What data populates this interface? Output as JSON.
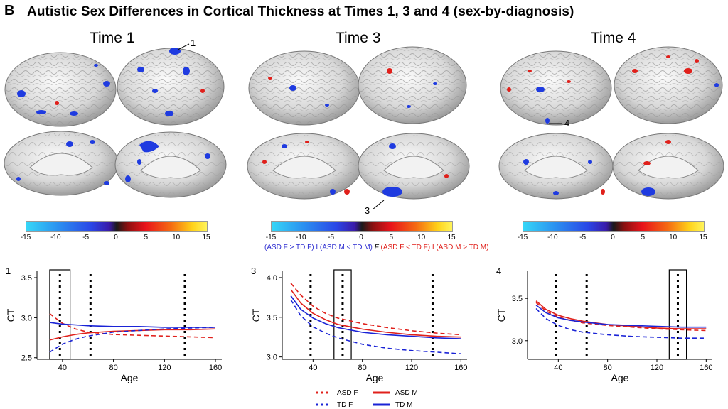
{
  "panel_letter": "B",
  "title": "Autistic Sex Differences in Cortical Thickness at Times 1, 3 and 4 (sex-by-diagnosis)",
  "times": [
    {
      "label": "Time 1",
      "callout": "1"
    },
    {
      "label": "Time 3",
      "callout": "3"
    },
    {
      "label": "Time 4",
      "callout": "4"
    }
  ],
  "colorbar": {
    "ticks": [
      "-15",
      "-10",
      "-5",
      "0",
      "5",
      "10",
      "15"
    ],
    "note": {
      "blue_part": "(ASD F > TD F) I (ASD M < TD M)",
      "f_part": "F",
      "red_part": "(ASD F < TD F) I (ASD M > TD M)"
    }
  },
  "legend": {
    "asd_f": "ASD F",
    "asd_m": "ASD M",
    "td_f": "TD F",
    "td_m": "TD M",
    "colors": {
      "asd": "#e0201b",
      "td": "#1a23d6"
    }
  },
  "chart_data": [
    {
      "type": "line",
      "panel_label": "1",
      "xlabel": "Age",
      "ylabel": "CT",
      "xticks": [
        40,
        80,
        120,
        160
      ],
      "yticks": [
        "2.5",
        "3.0",
        "3.5"
      ],
      "xlim": [
        20,
        165
      ],
      "ylim": [
        2.48,
        3.58
      ],
      "vlines": [
        38,
        62,
        136
      ],
      "highlight_box": [
        30,
        46
      ],
      "series": [
        {
          "name": "ASD F",
          "x": [
            30,
            40,
            50,
            60,
            80,
            100,
            120,
            140,
            160
          ],
          "y": [
            3.05,
            2.93,
            2.86,
            2.82,
            2.79,
            2.78,
            2.77,
            2.76,
            2.75
          ]
        },
        {
          "name": "ASD M",
          "x": [
            30,
            40,
            50,
            60,
            80,
            100,
            120,
            140,
            160
          ],
          "y": [
            2.72,
            2.76,
            2.79,
            2.81,
            2.83,
            2.84,
            2.85,
            2.85,
            2.86
          ]
        },
        {
          "name": "TD F",
          "x": [
            30,
            40,
            50,
            60,
            80,
            100,
            120,
            140,
            160
          ],
          "y": [
            2.57,
            2.67,
            2.73,
            2.77,
            2.82,
            2.84,
            2.86,
            2.87,
            2.88
          ]
        },
        {
          "name": "TD M",
          "x": [
            30,
            40,
            50,
            60,
            80,
            100,
            120,
            140,
            160
          ],
          "y": [
            2.94,
            2.92,
            2.91,
            2.9,
            2.89,
            2.89,
            2.88,
            2.88,
            2.88
          ]
        }
      ]
    },
    {
      "type": "line",
      "panel_label": "3",
      "xlabel": "Age",
      "ylabel": "CT",
      "xticks": [
        40,
        80,
        120,
        160
      ],
      "yticks": [
        "3.0",
        "3.5",
        "4.0"
      ],
      "xlim": [
        15,
        165
      ],
      "ylim": [
        2.97,
        4.08
      ],
      "vlines": [
        38,
        64,
        137
      ],
      "highlight_box": [
        57,
        71
      ],
      "series": [
        {
          "name": "ASD F",
          "x": [
            22,
            30,
            40,
            50,
            60,
            80,
            100,
            120,
            140,
            160
          ],
          "y": [
            3.93,
            3.78,
            3.64,
            3.55,
            3.49,
            3.42,
            3.37,
            3.33,
            3.3,
            3.28
          ]
        },
        {
          "name": "ASD M",
          "x": [
            22,
            30,
            40,
            50,
            60,
            80,
            100,
            120,
            140,
            160
          ],
          "y": [
            3.85,
            3.68,
            3.55,
            3.47,
            3.41,
            3.35,
            3.31,
            3.28,
            3.26,
            3.25
          ]
        },
        {
          "name": "TD F",
          "x": [
            22,
            30,
            40,
            50,
            60,
            80,
            100,
            120,
            140,
            160
          ],
          "y": [
            3.72,
            3.52,
            3.38,
            3.3,
            3.24,
            3.16,
            3.11,
            3.08,
            3.06,
            3.04
          ]
        },
        {
          "name": "TD M",
          "x": [
            22,
            30,
            40,
            50,
            60,
            80,
            100,
            120,
            140,
            160
          ],
          "y": [
            3.77,
            3.6,
            3.49,
            3.42,
            3.37,
            3.31,
            3.28,
            3.26,
            3.24,
            3.23
          ]
        }
      ]
    },
    {
      "type": "line",
      "panel_label": "4",
      "xlabel": "Age",
      "ylabel": "CT",
      "xticks": [
        40,
        80,
        120,
        160
      ],
      "yticks": [
        "3.0",
        "3.5"
      ],
      "xlim": [
        15,
        165
      ],
      "ylim": [
        2.78,
        3.82
      ],
      "vlines": [
        38,
        63,
        137
      ],
      "highlight_box": [
        130,
        144
      ],
      "series": [
        {
          "name": "ASD F",
          "x": [
            22,
            30,
            40,
            50,
            60,
            80,
            100,
            120,
            140,
            160
          ],
          "y": [
            3.45,
            3.35,
            3.28,
            3.24,
            3.21,
            3.18,
            3.16,
            3.14,
            3.13,
            3.12
          ]
        },
        {
          "name": "ASD M",
          "x": [
            22,
            30,
            40,
            50,
            60,
            80,
            100,
            120,
            140,
            160
          ],
          "y": [
            3.47,
            3.37,
            3.3,
            3.26,
            3.23,
            3.19,
            3.17,
            3.15,
            3.14,
            3.14
          ]
        },
        {
          "name": "TD F",
          "x": [
            22,
            30,
            40,
            50,
            60,
            80,
            100,
            120,
            140,
            160
          ],
          "y": [
            3.38,
            3.26,
            3.18,
            3.13,
            3.1,
            3.07,
            3.05,
            3.04,
            3.03,
            3.03
          ]
        },
        {
          "name": "TD M",
          "x": [
            22,
            30,
            40,
            50,
            60,
            80,
            100,
            120,
            140,
            160
          ],
          "y": [
            3.42,
            3.33,
            3.27,
            3.24,
            3.22,
            3.19,
            3.18,
            3.17,
            3.16,
            3.16
          ]
        }
      ]
    }
  ]
}
